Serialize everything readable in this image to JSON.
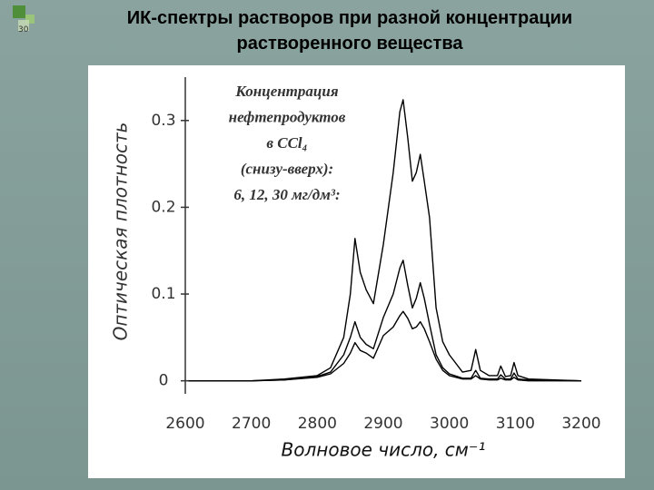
{
  "slide_number": "30",
  "chart_data": {
    "type": "line",
    "title": "ИК-спектры растворов при разной концентрации растворенного вещества",
    "x_label": "Волновое число, см⁻¹",
    "y_label": "Оптическая плотность",
    "annotation": [
      "Концентрация",
      "нефтепродуктов",
      "в CCl₄",
      "(снизу-вверх):",
      "6, 12, 30 мг/дм³:"
    ],
    "x": [
      2605,
      2700,
      2750,
      2800,
      2820,
      2840,
      2850,
      2857,
      2865,
      2874,
      2885,
      2900,
      2915,
      2925,
      2930,
      2937,
      2944,
      2950,
      2956,
      2962,
      2970,
      2980,
      2990,
      3000,
      3020,
      3033,
      3040,
      3047,
      3060,
      3073,
      3078,
      3085,
      3093,
      3098,
      3104,
      3120,
      3200
    ],
    "series": [
      {
        "color": "#000000",
        "values": [
          0,
          0,
          0.001,
          0.004,
          0.008,
          0.02,
          0.032,
          0.044,
          0.035,
          0.032,
          0.026,
          0.052,
          0.062,
          0.075,
          0.08,
          0.072,
          0.06,
          0.062,
          0.068,
          0.06,
          0.045,
          0.025,
          0.012,
          0.006,
          0.002,
          0.002,
          0.006,
          0.002,
          0.001,
          0.001,
          0.003,
          0.001,
          0.001,
          0.004,
          0.001,
          0,
          0
        ]
      },
      {
        "color": "#000000",
        "values": [
          0,
          0,
          0.001,
          0.005,
          0.01,
          0.03,
          0.05,
          0.068,
          0.05,
          0.042,
          0.037,
          0.073,
          0.1,
          0.13,
          0.139,
          0.11,
          0.084,
          0.095,
          0.113,
          0.095,
          0.065,
          0.03,
          0.015,
          0.008,
          0.003,
          0.003,
          0.012,
          0.003,
          0.002,
          0.002,
          0.007,
          0.002,
          0.002,
          0.009,
          0.002,
          0.001,
          0
        ]
      },
      {
        "color": "#000000",
        "values": [
          0,
          0,
          0.002,
          0.006,
          0.015,
          0.05,
          0.1,
          0.164,
          0.125,
          0.105,
          0.089,
          0.157,
          0.24,
          0.31,
          0.324,
          0.28,
          0.23,
          0.24,
          0.261,
          0.23,
          0.188,
          0.084,
          0.045,
          0.03,
          0.01,
          0.012,
          0.036,
          0.012,
          0.006,
          0.006,
          0.017,
          0.005,
          0.006,
          0.021,
          0.006,
          0.002,
          0
        ]
      }
    ],
    "xlim": [
      2600,
      3200
    ],
    "xticks": [
      2600,
      2700,
      2800,
      2900,
      3000,
      3100,
      3200
    ],
    "ylim": [
      -0.015,
      0.35
    ],
    "yticks": [
      0,
      0.1,
      0.2,
      0.3
    ],
    "grid": false
  }
}
